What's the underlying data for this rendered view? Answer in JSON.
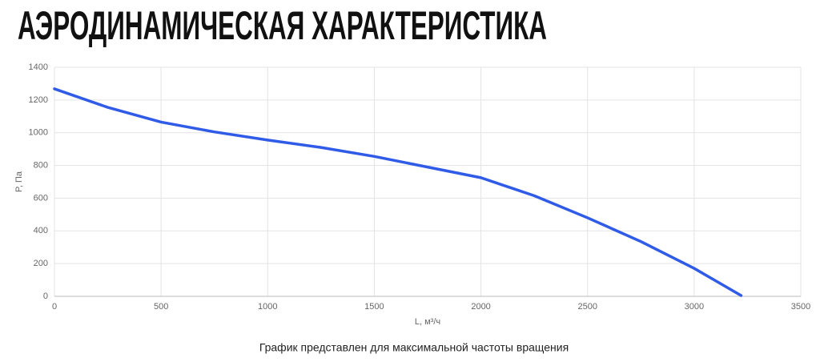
{
  "header": {
    "title": "АЭРОДИНАМИЧЕСКАЯ ХАРАКТЕРИСТИКА"
  },
  "chart_data": {
    "type": "line",
    "xlabel": "L, м³/ч",
    "ylabel": "P, Па",
    "color": "#2f5be6",
    "x": [
      0,
      250,
      500,
      750,
      1000,
      1250,
      1500,
      1750,
      2000,
      2250,
      2500,
      2750,
      3000,
      3220
    ],
    "values": [
      1268,
      1155,
      1065,
      1005,
      955,
      910,
      855,
      790,
      725,
      615,
      480,
      335,
      171,
      5
    ],
    "xlim": [
      0,
      3500
    ],
    "ylim": [
      0,
      1400
    ],
    "xticks": [
      0,
      500,
      1000,
      1500,
      2000,
      2500,
      3000,
      3500
    ],
    "yticks": [
      0,
      200,
      400,
      600,
      800,
      1000,
      1200,
      1400
    ],
    "grid": true
  },
  "footer": {
    "caption": "График представлен для максимальной частоты вращения"
  }
}
